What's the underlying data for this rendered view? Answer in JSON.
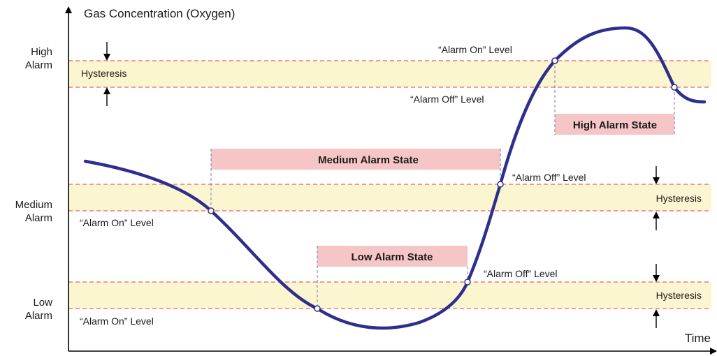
{
  "axes": {
    "y_title": "Gas Concentration (Oxygen)",
    "x_title": "Time"
  },
  "levels": {
    "high": {
      "line1": "High",
      "line2": "Alarm"
    },
    "medium": {
      "line1": "Medium",
      "line2": "Alarm"
    },
    "low": {
      "line1": "Low",
      "line2": "Alarm"
    }
  },
  "labels": {
    "hysteresis": "Hysteresis",
    "alarm_on": "“Alarm On” Level",
    "alarm_off": "“Alarm Off” Level"
  },
  "states": {
    "medium": "Medium Alarm State",
    "low": "Low Alarm State",
    "high": "High Alarm State"
  },
  "colors": {
    "curve": "#2e2f8c",
    "hysteresis_band": "#fbf6cf",
    "threshold_line": "#e8606a",
    "state_box": "#f6c6c6",
    "axis": "#000000"
  }
}
